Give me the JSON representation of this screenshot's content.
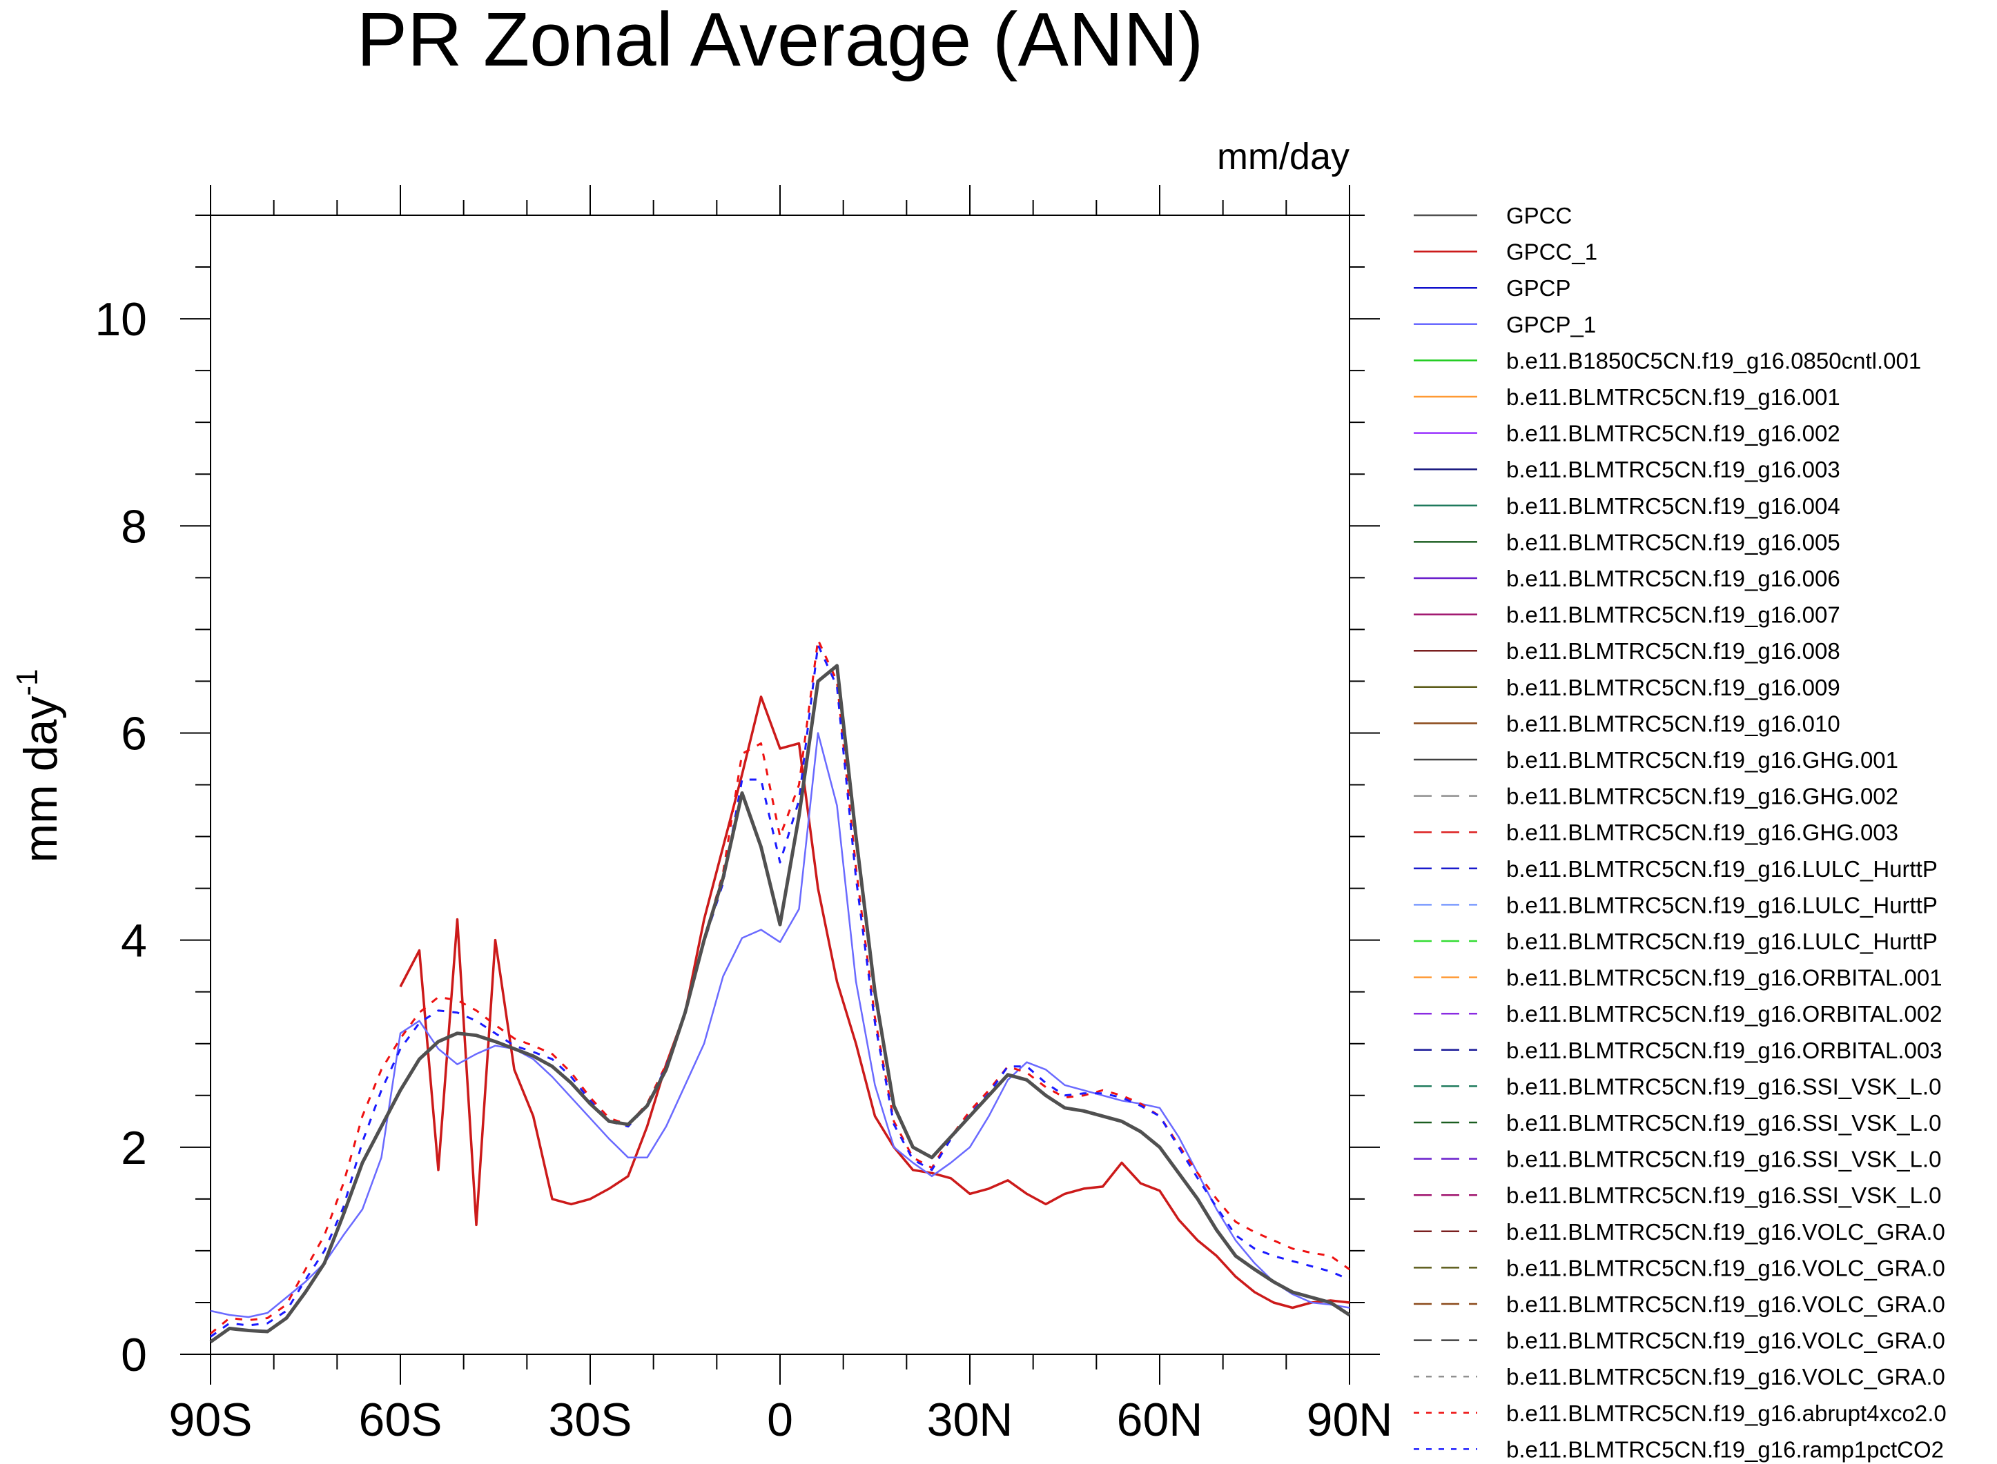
{
  "chart_data": {
    "type": "line",
    "title": "PR Zonal Average (ANN)",
    "units_label": "mm/day",
    "ylabel": "mm day",
    "ylabel_exponent": "-1",
    "xlim": [
      -90,
      90
    ],
    "ylim": [
      0,
      11
    ],
    "xticks": [
      {
        "value": -90,
        "label": "90S"
      },
      {
        "value": -60,
        "label": "60S"
      },
      {
        "value": -30,
        "label": "30S"
      },
      {
        "value": 0,
        "label": "0"
      },
      {
        "value": 30,
        "label": "30N"
      },
      {
        "value": 60,
        "label": "60N"
      },
      {
        "value": 90,
        "label": "90N"
      }
    ],
    "yticks": [
      {
        "value": 0,
        "label": "0"
      },
      {
        "value": 2,
        "label": "2"
      },
      {
        "value": 4,
        "label": "4"
      },
      {
        "value": 6,
        "label": "6"
      },
      {
        "value": 8,
        "label": "8"
      },
      {
        "value": 10,
        "label": "10"
      }
    ],
    "x": [
      -90,
      -87,
      -84,
      -81,
      -78,
      -75,
      -72,
      -69,
      -66,
      -63,
      -60,
      -57,
      -54,
      -51,
      -48,
      -45,
      -42,
      -39,
      -36,
      -33,
      -30,
      -27,
      -24,
      -21,
      -18,
      -15,
      -12,
      -9,
      -6,
      -3,
      0,
      3,
      6,
      9,
      12,
      15,
      18,
      21,
      24,
      27,
      30,
      33,
      36,
      39,
      42,
      45,
      48,
      51,
      54,
      57,
      60,
      63,
      66,
      69,
      72,
      75,
      78,
      81,
      84,
      87,
      90
    ],
    "series": [
      {
        "name": "GPCC",
        "color": "#505050",
        "dash": "solid",
        "width": 5,
        "values": [
          0.12,
          0.25,
          0.23,
          0.22,
          0.35,
          0.6,
          0.88,
          1.35,
          1.85,
          2.2,
          2.55,
          2.85,
          3.02,
          3.1,
          3.08,
          3.02,
          2.95,
          2.88,
          2.78,
          2.62,
          2.42,
          2.25,
          2.22,
          2.4,
          2.75,
          3.3,
          4.0,
          4.6,
          5.42,
          4.9,
          4.15,
          5.2,
          6.5,
          6.65,
          5.0,
          3.5,
          2.4,
          2.0,
          1.9,
          2.1,
          2.3,
          2.5,
          2.7,
          2.65,
          2.5,
          2.38,
          2.35,
          2.3,
          2.25,
          2.15,
          2.0,
          1.75,
          1.5,
          1.2,
          0.95,
          0.82,
          0.7,
          0.6,
          0.55,
          0.5,
          0.38
        ]
      },
      {
        "name": "GPCC_1",
        "color": "#cc1a1a",
        "dash": "solid",
        "width": 3.5,
        "values": [
          null,
          null,
          null,
          null,
          null,
          null,
          null,
          null,
          null,
          null,
          3.55,
          3.9,
          1.78,
          4.2,
          1.25,
          4.0,
          2.75,
          2.3,
          1.5,
          1.45,
          1.5,
          1.6,
          1.72,
          2.2,
          2.8,
          3.3,
          4.2,
          4.9,
          5.6,
          6.35,
          5.85,
          5.9,
          4.5,
          3.6,
          3.0,
          2.3,
          2.0,
          1.78,
          1.75,
          1.7,
          1.55,
          1.6,
          1.68,
          1.55,
          1.45,
          1.55,
          1.6,
          1.62,
          1.85,
          1.65,
          1.58,
          1.3,
          1.1,
          0.95,
          0.75,
          0.6,
          0.5,
          0.45,
          0.5,
          0.52,
          0.5
        ]
      },
      {
        "name": "GPCP",
        "color": "#1010cc",
        "dash": "solid",
        "width": 3,
        "values": [
          0.12,
          0.25,
          0.23,
          0.22,
          0.35,
          0.6,
          0.88,
          1.35,
          1.85,
          2.2,
          2.55,
          2.85,
          3.02,
          3.1,
          3.08,
          3.02,
          2.95,
          2.88,
          2.78,
          2.62,
          2.42,
          2.25,
          2.22,
          2.4,
          2.75,
          3.3,
          4.0,
          4.6,
          5.42,
          4.9,
          4.15,
          5.2,
          6.5,
          6.65,
          5.0,
          3.5,
          2.4,
          2.0,
          1.9,
          2.1,
          2.3,
          2.5,
          2.7,
          2.65,
          2.5,
          2.38,
          2.35,
          2.3,
          2.25,
          2.15,
          2.0,
          1.75,
          1.5,
          1.2,
          0.95,
          0.82,
          0.7,
          0.6,
          0.55,
          0.5,
          0.38
        ]
      },
      {
        "name": "GPCP_1",
        "color": "#6a6aff",
        "dash": "solid",
        "width": 2.5,
        "values": [
          0.42,
          0.38,
          0.36,
          0.4,
          0.55,
          0.7,
          0.88,
          1.15,
          1.4,
          1.9,
          3.1,
          3.22,
          2.95,
          2.8,
          2.9,
          2.98,
          2.95,
          2.85,
          2.68,
          2.48,
          2.28,
          2.08,
          1.9,
          1.9,
          2.2,
          2.6,
          3.0,
          3.65,
          4.02,
          4.1,
          3.98,
          4.3,
          6.0,
          5.3,
          3.6,
          2.6,
          2.0,
          1.85,
          1.72,
          1.85,
          2.0,
          2.3,
          2.65,
          2.82,
          2.75,
          2.6,
          2.55,
          2.5,
          2.45,
          2.42,
          2.38,
          2.1,
          1.75,
          1.4,
          1.1,
          0.88,
          0.7,
          0.58,
          0.5,
          0.48,
          0.45
        ]
      },
      {
        "name": "b.e11.B1850C5CN.f19_g16.0850cntl.001",
        "color": "#22cc22",
        "dash": "solid",
        "width": 2,
        "values": null
      },
      {
        "name": "b.e11.BLMTRC5CN.f19_g16.001",
        "color": "#ff9933",
        "dash": "solid",
        "width": 2,
        "values": null
      },
      {
        "name": "b.e11.BLMTRC5CN.f19_g16.002",
        "color": "#9933ff",
        "dash": "solid",
        "width": 2,
        "values": null
      },
      {
        "name": "b.e11.BLMTRC5CN.f19_g16.003",
        "color": "#1a1a80",
        "dash": "solid",
        "width": 2,
        "values": null
      },
      {
        "name": "b.e11.BLMTRC5CN.f19_g16.004",
        "color": "#1f7a5c",
        "dash": "solid",
        "width": 2,
        "values": null
      },
      {
        "name": "b.e11.BLMTRC5CN.f19_g16.005",
        "color": "#1b5e20",
        "dash": "solid",
        "width": 2,
        "values": null
      },
      {
        "name": "b.e11.BLMTRC5CN.f19_g16.006",
        "color": "#6a1fcc",
        "dash": "solid",
        "width": 2,
        "values": null
      },
      {
        "name": "b.e11.BLMTRC5CN.f19_g16.007",
        "color": "#a0146e",
        "dash": "solid",
        "width": 2,
        "values": null
      },
      {
        "name": "b.e11.BLMTRC5CN.f19_g16.008",
        "color": "#7a1f1f",
        "dash": "solid",
        "width": 2,
        "values": null
      },
      {
        "name": "b.e11.BLMTRC5CN.f19_g16.009",
        "color": "#5c5c1a",
        "dash": "solid",
        "width": 2,
        "values": null
      },
      {
        "name": "b.e11.BLMTRC5CN.f19_g16.010",
        "color": "#8b4a1a",
        "dash": "solid",
        "width": 2,
        "values": null
      },
      {
        "name": "b.e11.BLMTRC5CN.f19_g16.GHG.001",
        "color": "#404040",
        "dash": "solid",
        "width": 2,
        "values": null
      },
      {
        "name": "b.e11.BLMTRC5CN.f19_g16.GHG.002",
        "color": "#909090",
        "dash": "longdash",
        "width": 2,
        "values": null
      },
      {
        "name": "b.e11.BLMTRC5CN.f19_g16.GHG.003",
        "color": "#dd2222",
        "dash": "longdash",
        "width": 2,
        "values": null
      },
      {
        "name": "b.e11.BLMTRC5CN.f19_g16.LULC_HurttP",
        "color": "#1a1acc",
        "dash": "longdash",
        "width": 2,
        "values": null
      },
      {
        "name": "b.e11.BLMTRC5CN.f19_g16.LULC_HurttP",
        "color": "#7a9aff",
        "dash": "longdash",
        "width": 2,
        "values": null
      },
      {
        "name": "b.e11.BLMTRC5CN.f19_g16.LULC_HurttP",
        "color": "#33dd33",
        "dash": "longdash",
        "width": 2,
        "values": null
      },
      {
        "name": "b.e11.BLMTRC5CN.f19_g16.ORBITAL.001",
        "color": "#ff9933",
        "dash": "longdash",
        "width": 2,
        "values": null
      },
      {
        "name": "b.e11.BLMTRC5CN.f19_g16.ORBITAL.002",
        "color": "#8a2be2",
        "dash": "longdash",
        "width": 2,
        "values": null
      },
      {
        "name": "b.e11.BLMTRC5CN.f19_g16.ORBITAL.003",
        "color": "#1a1a99",
        "dash": "longdash",
        "width": 2,
        "values": null
      },
      {
        "name": "b.e11.BLMTRC5CN.f19_g16.SSI_VSK_L.0",
        "color": "#1f7a5c",
        "dash": "longdash",
        "width": 2,
        "values": null
      },
      {
        "name": "b.e11.BLMTRC5CN.f19_g16.SSI_VSK_L.0",
        "color": "#1b5e20",
        "dash": "longdash",
        "width": 2,
        "values": null
      },
      {
        "name": "b.e11.BLMTRC5CN.f19_g16.SSI_VSK_L.0",
        "color": "#6a1fcc",
        "dash": "longdash",
        "width": 2,
        "values": null
      },
      {
        "name": "b.e11.BLMTRC5CN.f19_g16.SSI_VSK_L.0",
        "color": "#a0146e",
        "dash": "longdash",
        "width": 2,
        "values": null
      },
      {
        "name": "b.e11.BLMTRC5CN.f19_g16.VOLC_GRA.0",
        "color": "#7a1f1f",
        "dash": "longdash",
        "width": 2,
        "values": null
      },
      {
        "name": "b.e11.BLMTRC5CN.f19_g16.VOLC_GRA.0",
        "color": "#5c5c1a",
        "dash": "longdash",
        "width": 2,
        "values": null
      },
      {
        "name": "b.e11.BLMTRC5CN.f19_g16.VOLC_GRA.0",
        "color": "#8b4a1a",
        "dash": "longdash",
        "width": 2,
        "values": null
      },
      {
        "name": "b.e11.BLMTRC5CN.f19_g16.VOLC_GRA.0",
        "color": "#404040",
        "dash": "longdash",
        "width": 2,
        "values": null
      },
      {
        "name": "b.e11.BLMTRC5CN.f19_g16.VOLC_GRA.0",
        "color": "#909090",
        "dash": "shortdash",
        "width": 2,
        "values": null
      },
      {
        "name": "b.e11.BLMTRC5CN.f19_g16.abrupt4xco2.0",
        "color": "#ee1111",
        "dash": "shortdash",
        "width": 3,
        "values": [
          0.2,
          0.35,
          0.33,
          0.35,
          0.48,
          0.82,
          1.15,
          1.65,
          2.3,
          2.75,
          3.05,
          3.3,
          3.45,
          3.42,
          3.32,
          3.18,
          3.05,
          2.98,
          2.9,
          2.72,
          2.48,
          2.28,
          2.22,
          2.42,
          2.8,
          3.3,
          4.0,
          4.65,
          5.8,
          5.9,
          5.0,
          5.5,
          6.9,
          6.5,
          4.7,
          3.25,
          2.25,
          1.9,
          1.8,
          2.1,
          2.35,
          2.55,
          2.78,
          2.72,
          2.58,
          2.48,
          2.5,
          2.55,
          2.5,
          2.42,
          2.3,
          2.02,
          1.75,
          1.5,
          1.28,
          1.18,
          1.1,
          1.02,
          0.98,
          0.95,
          0.82
        ]
      },
      {
        "name": "b.e11.BLMTRC5CN.f19_g16.ramp1pctCO2",
        "color": "#1a1aff",
        "dash": "shortdash",
        "width": 3,
        "values": [
          0.17,
          0.3,
          0.28,
          0.3,
          0.42,
          0.72,
          1.0,
          1.42,
          2.05,
          2.55,
          2.95,
          3.2,
          3.32,
          3.3,
          3.22,
          3.1,
          2.98,
          2.92,
          2.85,
          2.68,
          2.45,
          2.25,
          2.2,
          2.4,
          2.78,
          3.28,
          3.98,
          4.55,
          5.55,
          5.55,
          4.75,
          5.35,
          6.85,
          6.45,
          4.6,
          3.2,
          2.22,
          1.88,
          1.78,
          2.08,
          2.32,
          2.52,
          2.78,
          2.78,
          2.62,
          2.5,
          2.52,
          2.52,
          2.48,
          2.4,
          2.3,
          2.0,
          1.7,
          1.42,
          1.15,
          1.02,
          0.95,
          0.9,
          0.85,
          0.8,
          0.72
        ]
      }
    ]
  }
}
